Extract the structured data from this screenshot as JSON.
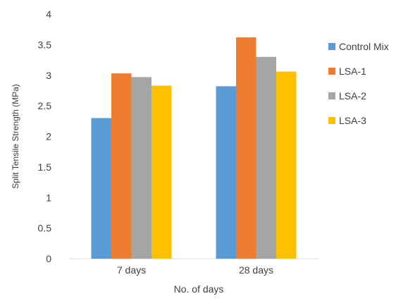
{
  "chart_data": {
    "type": "bar",
    "categories": [
      "7 days",
      "28 days"
    ],
    "series": [
      {
        "name": "Control Mix",
        "values": [
          2.3,
          2.82
        ],
        "color": "#5b9bd5"
      },
      {
        "name": "LSA-1",
        "values": [
          3.03,
          3.62
        ],
        "color": "#ed7d31"
      },
      {
        "name": "LSA-2",
        "values": [
          2.97,
          3.3
        ],
        "color": "#a5a5a5"
      },
      {
        "name": "LSA-3",
        "values": [
          2.83,
          3.06
        ],
        "color": "#ffc000"
      }
    ],
    "xlabel": "No. of days",
    "ylabel": "Split Tensile Strength (MPa)",
    "ylim": [
      0,
      4
    ],
    "yticks": [
      0,
      0.5,
      1,
      1.5,
      2,
      2.5,
      3,
      3.5,
      4
    ],
    "ytick_labels": [
      "0",
      "0.5",
      "1",
      "1.5",
      "2",
      "2.5",
      "3",
      "3.5",
      "4"
    ],
    "grid": false,
    "legend_position": "right"
  }
}
